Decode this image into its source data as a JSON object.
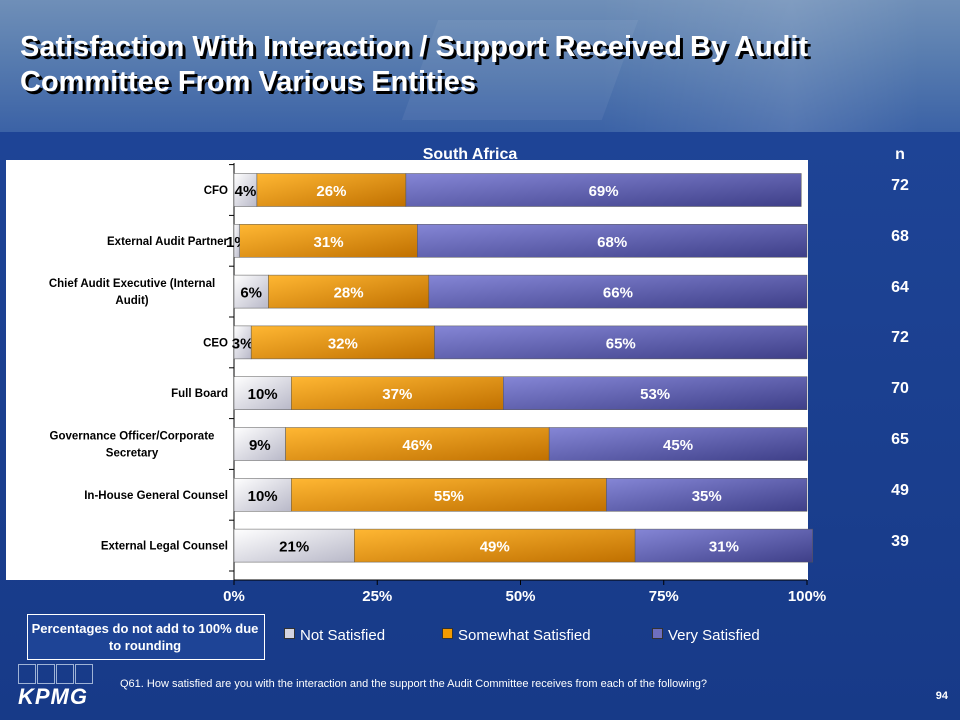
{
  "title": "Satisfaction With Interaction / Support Received By Audit Committee From Various Entities",
  "subtitle": "South Africa",
  "n_header": "n",
  "note": "Percentages do not add to 100% due to rounding",
  "question": "Q61. How satisfied are you with the interaction and the support the Audit Committee receives from each of the following?",
  "page_number": "94",
  "logo_text": "KPMG",
  "colors": {
    "not_satisfied": "#d4d4e0",
    "somewhat_satisfied": "#f39a00",
    "very_satisfied": "#6e6fbf"
  },
  "chart_data": {
    "type": "bar",
    "orientation": "horizontal",
    "stacked": true,
    "percent_scale": true,
    "categories": [
      "CFO",
      "External Audit Partner",
      "Chief Audit Executive (Internal Audit)",
      "CEO",
      "Full Board",
      "Governance Officer/Corporate Secretary",
      "In-House General Counsel",
      "External Legal Counsel"
    ],
    "series": [
      {
        "name": "Not Satisfied",
        "values": [
          4,
          1,
          6,
          3,
          10,
          9,
          10,
          21
        ]
      },
      {
        "name": "Somewhat Satisfied",
        "values": [
          26,
          31,
          28,
          32,
          37,
          46,
          55,
          49
        ]
      },
      {
        "name": "Very Satisfied",
        "values": [
          69,
          68,
          66,
          65,
          53,
          45,
          35,
          31
        ]
      }
    ],
    "n": [
      72,
      68,
      64,
      72,
      70,
      65,
      49,
      39
    ],
    "xlim": [
      0,
      100
    ],
    "xticks": [
      "0%",
      "25%",
      "50%",
      "75%",
      "100%"
    ],
    "legend_position": "bottom"
  }
}
